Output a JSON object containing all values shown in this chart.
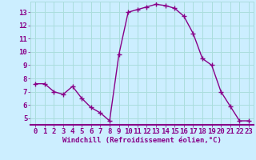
{
  "x": [
    0,
    1,
    2,
    3,
    4,
    5,
    6,
    7,
    8,
    9,
    10,
    11,
    12,
    13,
    14,
    15,
    16,
    17,
    18,
    19,
    20,
    21,
    22,
    23
  ],
  "y": [
    7.6,
    7.6,
    7.0,
    6.8,
    7.4,
    6.5,
    5.8,
    5.4,
    4.8,
    9.8,
    13.0,
    13.2,
    13.4,
    13.6,
    13.5,
    13.3,
    12.7,
    11.4,
    9.5,
    9.0,
    7.0,
    5.9,
    4.8,
    4.8
  ],
  "line_color": "#880088",
  "marker": "+",
  "marker_size": 4,
  "marker_linewidth": 1.0,
  "background_color": "#cceeff",
  "grid_color": "#aadddd",
  "xlabel": "Windchill (Refroidissement éolien,°C)",
  "xlabel_color": "#880088",
  "xlabel_fontsize": 6.5,
  "tick_color": "#880088",
  "tick_fontsize": 6.5,
  "xlim": [
    -0.5,
    23.5
  ],
  "ylim": [
    4.5,
    13.8
  ],
  "yticks": [
    5,
    6,
    7,
    8,
    9,
    10,
    11,
    12,
    13
  ],
  "xticks": [
    0,
    1,
    2,
    3,
    4,
    5,
    6,
    7,
    8,
    9,
    10,
    11,
    12,
    13,
    14,
    15,
    16,
    17,
    18,
    19,
    20,
    21,
    22,
    23
  ],
  "linewidth": 1.0,
  "spine_color": "#aadddd",
  "bottom_spine_color": "#880088"
}
